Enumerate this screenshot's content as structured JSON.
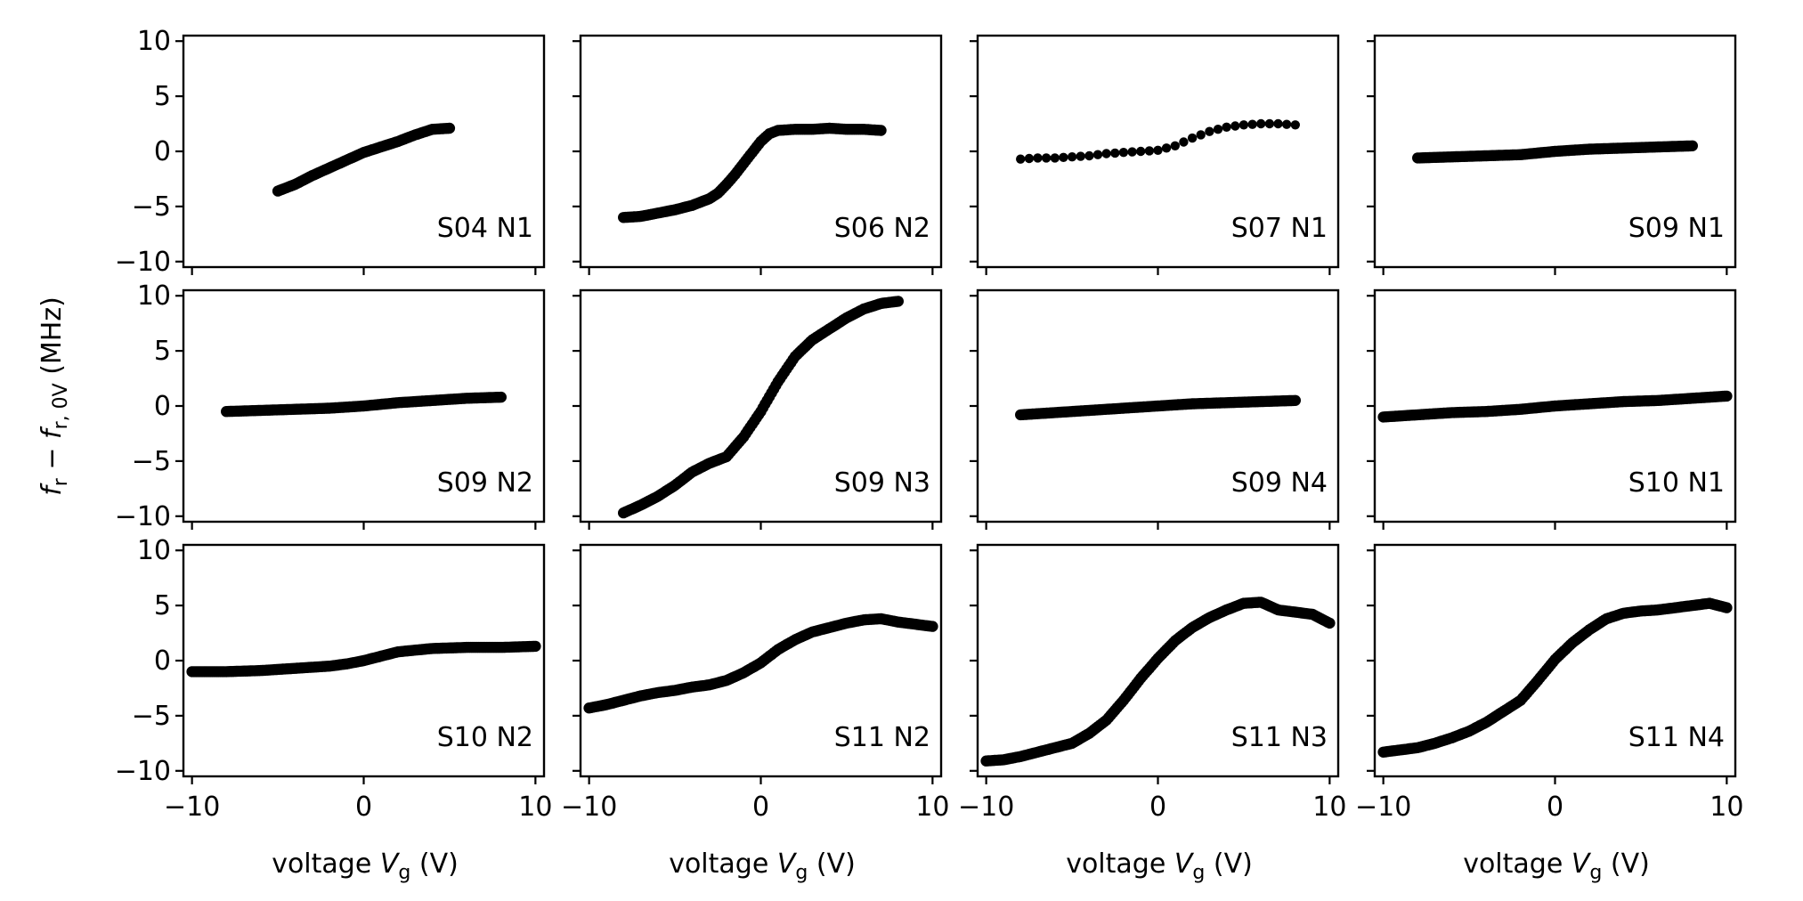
{
  "chart_data": {
    "type": "scatter",
    "layout": "3x4 grid of subplots, shared axes",
    "xlabel": {
      "prefix": "voltage ",
      "var": "V",
      "sub": "g",
      "suffix": " (V)"
    },
    "ylabel": {
      "f": "f",
      "f_sub": "r",
      "minus": " − ",
      "f2": "f",
      "f2_sub": "r, 0V",
      "suffix": " (MHz)"
    },
    "xlim": [
      -10.5,
      10.5
    ],
    "ylim": [
      -10.5,
      10.5
    ],
    "xticks": [
      -10,
      0,
      10
    ],
    "yticks": [
      10,
      5,
      0,
      -5,
      -10
    ],
    "marker_color": "#000000",
    "panels": [
      {
        "label": "S04 N1",
        "x": [
          -5,
          -4,
          -3,
          -2,
          -1,
          0,
          1,
          2,
          3,
          4,
          5
        ],
        "y": [
          -3.6,
          -3.0,
          -2.2,
          -1.5,
          -0.8,
          -0.1,
          0.4,
          0.9,
          1.5,
          2.0,
          2.1
        ]
      },
      {
        "label": "S06 N2",
        "x": [
          -8,
          -7,
          -6,
          -5,
          -4,
          -3,
          -2.5,
          -2,
          -1.5,
          -1,
          -0.5,
          0,
          0.5,
          1,
          2,
          3,
          4,
          5,
          6,
          7
        ],
        "y": [
          -6.0,
          -5.9,
          -5.6,
          -5.3,
          -4.9,
          -4.3,
          -3.8,
          -3.0,
          -2.1,
          -1.1,
          -0.1,
          0.9,
          1.6,
          1.9,
          2.0,
          2.0,
          2.1,
          2.0,
          2.0,
          1.9
        ]
      },
      {
        "label": "S07 N1",
        "x": [
          -8,
          -7,
          -6,
          -5,
          -4,
          -3,
          -2,
          -1,
          0,
          1,
          2,
          3,
          4,
          5,
          6,
          7,
          8
        ],
        "y": [
          -0.7,
          -0.6,
          -0.6,
          -0.5,
          -0.4,
          -0.2,
          -0.1,
          0.0,
          0.1,
          0.5,
          1.2,
          1.8,
          2.2,
          2.4,
          2.5,
          2.5,
          2.4
        ]
      },
      {
        "label": "S09 N1",
        "x": [
          -8,
          -6,
          -4,
          -2,
          0,
          2,
          4,
          6,
          8
        ],
        "y": [
          -0.6,
          -0.5,
          -0.4,
          -0.3,
          0.0,
          0.2,
          0.3,
          0.4,
          0.5
        ]
      },
      {
        "label": "S09 N2",
        "x": [
          -8,
          -6,
          -4,
          -2,
          0,
          2,
          4,
          6,
          8
        ],
        "y": [
          -0.5,
          -0.4,
          -0.3,
          -0.2,
          0.0,
          0.3,
          0.5,
          0.7,
          0.8
        ]
      },
      {
        "label": "S09 N3",
        "x": [
          -8,
          -7,
          -6,
          -5,
          -4,
          -3,
          -2,
          -1,
          0,
          1,
          2,
          3,
          4,
          5,
          6,
          7,
          8
        ],
        "y": [
          -9.7,
          -9.0,
          -8.2,
          -7.2,
          -6.0,
          -5.2,
          -4.6,
          -2.8,
          -0.5,
          2.2,
          4.5,
          6.0,
          7.0,
          8.0,
          8.8,
          9.3,
          9.5
        ]
      },
      {
        "label": "S09 N4",
        "x": [
          -8,
          -6,
          -4,
          -2,
          0,
          2,
          4,
          6,
          8
        ],
        "y": [
          -0.8,
          -0.6,
          -0.4,
          -0.2,
          0.0,
          0.2,
          0.3,
          0.4,
          0.5
        ]
      },
      {
        "label": "S10 N1",
        "x": [
          -10,
          -8,
          -6,
          -4,
          -2,
          0,
          2,
          4,
          6,
          8,
          10
        ],
        "y": [
          -1.0,
          -0.8,
          -0.6,
          -0.5,
          -0.3,
          0.0,
          0.2,
          0.4,
          0.5,
          0.7,
          0.9
        ]
      },
      {
        "label": "S10 N2",
        "x": [
          -10,
          -8,
          -6,
          -4,
          -2,
          -1,
          0,
          1,
          2,
          4,
          6,
          8,
          10
        ],
        "y": [
          -1.0,
          -1.0,
          -0.9,
          -0.7,
          -0.5,
          -0.3,
          0.0,
          0.4,
          0.8,
          1.1,
          1.2,
          1.2,
          1.3
        ]
      },
      {
        "label": "S11 N2",
        "x": [
          -10,
          -9,
          -8,
          -7,
          -6,
          -5,
          -4,
          -3,
          -2,
          -1,
          0,
          1,
          2,
          3,
          4,
          5,
          6,
          7,
          8,
          9,
          10
        ],
        "y": [
          -4.3,
          -4.0,
          -3.6,
          -3.2,
          -2.9,
          -2.7,
          -2.4,
          -2.2,
          -1.8,
          -1.1,
          -0.2,
          1.0,
          1.9,
          2.6,
          3.0,
          3.4,
          3.7,
          3.8,
          3.5,
          3.3,
          3.1
        ]
      },
      {
        "label": "S11 N3",
        "x": [
          -10,
          -9,
          -8,
          -7,
          -6,
          -5,
          -4,
          -3,
          -2,
          -1,
          0,
          1,
          2,
          3,
          4,
          5,
          6,
          7,
          8,
          9,
          10
        ],
        "y": [
          -9.1,
          -9.0,
          -8.7,
          -8.3,
          -7.9,
          -7.5,
          -6.6,
          -5.4,
          -3.6,
          -1.6,
          0.2,
          1.8,
          3.0,
          3.9,
          4.6,
          5.2,
          5.3,
          4.6,
          4.4,
          4.2,
          3.4
        ]
      },
      {
        "label": "S11 N4",
        "x": [
          -10,
          -9,
          -8,
          -7,
          -6,
          -5,
          -4,
          -3,
          -2,
          -1,
          0,
          1,
          2,
          3,
          4,
          5,
          6,
          7,
          8,
          9,
          10
        ],
        "y": [
          -8.3,
          -8.1,
          -7.9,
          -7.5,
          -7.0,
          -6.4,
          -5.6,
          -4.6,
          -3.6,
          -1.8,
          0.1,
          1.6,
          2.8,
          3.8,
          4.3,
          4.5,
          4.6,
          4.8,
          5.0,
          5.2,
          4.8
        ]
      }
    ]
  }
}
